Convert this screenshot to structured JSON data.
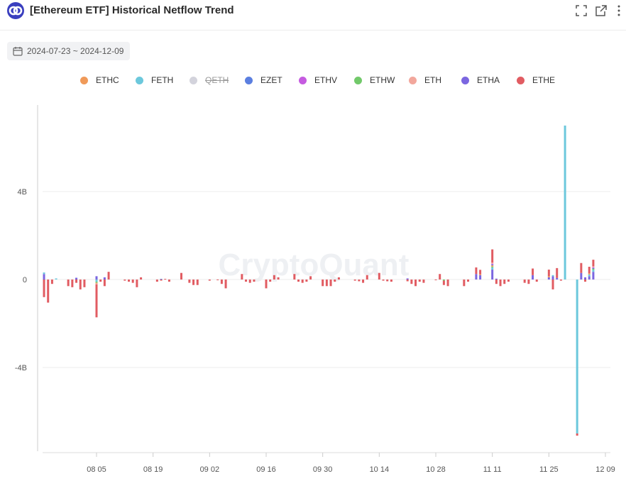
{
  "header": {
    "title": "[Ethereum ETF] Historical Netflow Trend",
    "icons": [
      "expand-icon",
      "open-external-icon",
      "more-icon"
    ]
  },
  "date_range": {
    "label": "2024-07-23 ~ 2024-12-09"
  },
  "watermark": "CryptoQuant",
  "legend": [
    {
      "name": "ETHC",
      "color": "#f09a59",
      "enabled": true
    },
    {
      "name": "FETH",
      "color": "#6cc8dc",
      "enabled": true
    },
    {
      "name": "QETH",
      "color": "#d3d3dc",
      "enabled": false
    },
    {
      "name": "EZET",
      "color": "#5b7fe0",
      "enabled": true
    },
    {
      "name": "ETHV",
      "color": "#c55be0",
      "enabled": true
    },
    {
      "name": "ETHW",
      "color": "#72c96a",
      "enabled": true
    },
    {
      "name": "ETH",
      "color": "#f2a79c",
      "enabled": true
    },
    {
      "name": "ETHA",
      "color": "#7b66e0",
      "enabled": true
    },
    {
      "name": "ETHE",
      "color": "#e15c62",
      "enabled": true
    }
  ],
  "chart_data": {
    "type": "bar",
    "stacked": true,
    "title": "",
    "xlabel": "",
    "ylabel": "",
    "x_ticks": [
      "08 05",
      "08 19",
      "09 02",
      "09 16",
      "09 30",
      "10 14",
      "10 28",
      "11 11",
      "11 25",
      "12 09"
    ],
    "y_ticks": [
      "4B",
      "0",
      "-4B"
    ],
    "y_tick_values": [
      4000000000,
      0,
      -4000000000
    ],
    "ylim": [
      -8000000000,
      8000000000
    ],
    "unit": "USD",
    "grid": true,
    "legend_position": "top",
    "series": [
      {
        "name": "ETHA",
        "values": [
          {
            "date": "2024-07-23",
            "value": 250000000
          },
          {
            "date": "2024-07-31",
            "value": 80000000
          },
          {
            "date": "2024-08-05",
            "value": 150000000
          },
          {
            "date": "2024-08-07",
            "value": 100000000
          },
          {
            "date": "2024-10-21",
            "value": 50000000
          },
          {
            "date": "2024-11-07",
            "value": 250000000
          },
          {
            "date": "2024-11-08",
            "value": 200000000
          },
          {
            "date": "2024-11-11",
            "value": 450000000
          },
          {
            "date": "2024-11-12",
            "value": 40000000
          },
          {
            "date": "2024-11-21",
            "value": 200000000
          },
          {
            "date": "2024-11-25",
            "value": 100000000
          },
          {
            "date": "2024-11-26",
            "value": 150000000
          },
          {
            "date": "2024-11-27",
            "value": 70000000
          },
          {
            "date": "2024-12-03",
            "value": 300000000
          },
          {
            "date": "2024-12-04",
            "value": 100000000
          },
          {
            "date": "2024-12-05",
            "value": 150000000
          },
          {
            "date": "2024-12-06",
            "value": 350000000
          }
        ]
      },
      {
        "name": "FETH",
        "values": [
          {
            "date": "2024-07-23",
            "value": 70000000
          },
          {
            "date": "2024-07-26",
            "value": 50000000
          },
          {
            "date": "2024-08-05",
            "value": -100000000
          },
          {
            "date": "2024-11-11",
            "value": 100000000
          },
          {
            "date": "2024-11-26",
            "value": 50000000
          },
          {
            "date": "2024-11-29",
            "value": 7000000000
          },
          {
            "date": "2024-12-02",
            "value": -7000000000
          },
          {
            "date": "2024-12-05",
            "value": 80000000
          },
          {
            "date": "2024-12-06",
            "value": 90000000
          }
        ]
      },
      {
        "name": "ETHW",
        "values": [
          {
            "date": "2024-08-05",
            "value": -50000000
          },
          {
            "date": "2024-10-30",
            "value": -50000000
          },
          {
            "date": "2024-11-11",
            "value": 40000000
          },
          {
            "date": "2024-12-06",
            "value": 60000000
          }
        ]
      },
      {
        "name": "ETHC",
        "values": [
          {
            "date": "2024-08-05",
            "value": -30000000
          },
          {
            "date": "2024-11-08",
            "value": 40000000
          },
          {
            "date": "2024-11-11",
            "value": 60000000
          },
          {
            "date": "2024-11-25",
            "value": 50000000
          },
          {
            "date": "2024-12-05",
            "value": 50000000
          }
        ]
      },
      {
        "name": "EZET",
        "values": [
          {
            "date": "2024-08-21",
            "value": 30000000
          },
          {
            "date": "2024-11-11",
            "value": 30000000
          },
          {
            "date": "2024-12-06",
            "value": 20000000
          }
        ]
      },
      {
        "name": "ETHV",
        "values": [
          {
            "date": "2024-11-11",
            "value": 40000000
          },
          {
            "date": "2024-12-06",
            "value": 40000000
          }
        ]
      },
      {
        "name": "ETH",
        "values": [
          {
            "date": "2024-08-05",
            "value": -40000000
          },
          {
            "date": "2024-11-11",
            "value": 50000000
          },
          {
            "date": "2024-12-06",
            "value": 40000000
          }
        ]
      },
      {
        "name": "ETHE",
        "values": [
          {
            "date": "2024-07-23",
            "value": -800000000
          },
          {
            "date": "2024-07-24",
            "value": -1050000000
          },
          {
            "date": "2024-07-25",
            "value": -200000000
          },
          {
            "date": "2024-07-29",
            "value": -300000000
          },
          {
            "date": "2024-07-30",
            "value": -350000000
          },
          {
            "date": "2024-07-31",
            "value": -150000000
          },
          {
            "date": "2024-08-01",
            "value": -450000000
          },
          {
            "date": "2024-08-02",
            "value": -350000000
          },
          {
            "date": "2024-08-05",
            "value": -1500000000
          },
          {
            "date": "2024-08-06",
            "value": -100000000
          },
          {
            "date": "2024-08-07",
            "value": -300000000
          },
          {
            "date": "2024-08-08",
            "value": 350000000
          },
          {
            "date": "2024-08-12",
            "value": -50000000
          },
          {
            "date": "2024-08-13",
            "value": -100000000
          },
          {
            "date": "2024-08-14",
            "value": -150000000
          },
          {
            "date": "2024-08-15",
            "value": -350000000
          },
          {
            "date": "2024-08-16",
            "value": 100000000
          },
          {
            "date": "2024-08-20",
            "value": -100000000
          },
          {
            "date": "2024-08-21",
            "value": -50000000
          },
          {
            "date": "2024-08-22",
            "value": 30000000
          },
          {
            "date": "2024-08-23",
            "value": -100000000
          },
          {
            "date": "2024-08-26",
            "value": 300000000
          },
          {
            "date": "2024-08-28",
            "value": -150000000
          },
          {
            "date": "2024-08-29",
            "value": -250000000
          },
          {
            "date": "2024-08-30",
            "value": -250000000
          },
          {
            "date": "2024-09-02",
            "value": -50000000
          },
          {
            "date": "2024-09-04",
            "value": -30000000
          },
          {
            "date": "2024-09-05",
            "value": -200000000
          },
          {
            "date": "2024-09-06",
            "value": -400000000
          },
          {
            "date": "2024-09-10",
            "value": 250000000
          },
          {
            "date": "2024-09-11",
            "value": -100000000
          },
          {
            "date": "2024-09-12",
            "value": -150000000
          },
          {
            "date": "2024-09-13",
            "value": -100000000
          },
          {
            "date": "2024-09-16",
            "value": -400000000
          },
          {
            "date": "2024-09-17",
            "value": -100000000
          },
          {
            "date": "2024-09-18",
            "value": 200000000
          },
          {
            "date": "2024-09-19",
            "value": 100000000
          },
          {
            "date": "2024-09-23",
            "value": 250000000
          },
          {
            "date": "2024-09-24",
            "value": -100000000
          },
          {
            "date": "2024-09-25",
            "value": -150000000
          },
          {
            "date": "2024-09-26",
            "value": -100000000
          },
          {
            "date": "2024-09-27",
            "value": 150000000
          },
          {
            "date": "2024-09-30",
            "value": -300000000
          },
          {
            "date": "2024-10-01",
            "value": -300000000
          },
          {
            "date": "2024-10-02",
            "value": -300000000
          },
          {
            "date": "2024-10-03",
            "value": -100000000
          },
          {
            "date": "2024-10-04",
            "value": 100000000
          },
          {
            "date": "2024-10-08",
            "value": -50000000
          },
          {
            "date": "2024-10-09",
            "value": -80000000
          },
          {
            "date": "2024-10-10",
            "value": -150000000
          },
          {
            "date": "2024-10-11",
            "value": 200000000
          },
          {
            "date": "2024-10-14",
            "value": 300000000
          },
          {
            "date": "2024-10-15",
            "value": -50000000
          },
          {
            "date": "2024-10-16",
            "value": -80000000
          },
          {
            "date": "2024-10-17",
            "value": -100000000
          },
          {
            "date": "2024-10-21",
            "value": -80000000
          },
          {
            "date": "2024-10-22",
            "value": -200000000
          },
          {
            "date": "2024-10-23",
            "value": -300000000
          },
          {
            "date": "2024-10-24",
            "value": -100000000
          },
          {
            "date": "2024-10-25",
            "value": -150000000
          },
          {
            "date": "2024-10-28",
            "value": -30000000
          },
          {
            "date": "2024-10-29",
            "value": 250000000
          },
          {
            "date": "2024-10-30",
            "value": -200000000
          },
          {
            "date": "2024-10-31",
            "value": -300000000
          },
          {
            "date": "2024-11-04",
            "value": -300000000
          },
          {
            "date": "2024-11-05",
            "value": -100000000
          },
          {
            "date": "2024-11-07",
            "value": 300000000
          },
          {
            "date": "2024-11-08",
            "value": 200000000
          },
          {
            "date": "2024-11-11",
            "value": 600000000
          },
          {
            "date": "2024-11-12",
            "value": -200000000
          },
          {
            "date": "2024-11-13",
            "value": -300000000
          },
          {
            "date": "2024-11-14",
            "value": -200000000
          },
          {
            "date": "2024-11-15",
            "value": -100000000
          },
          {
            "date": "2024-11-19",
            "value": -150000000
          },
          {
            "date": "2024-11-20",
            "value": -200000000
          },
          {
            "date": "2024-11-21",
            "value": 300000000
          },
          {
            "date": "2024-11-22",
            "value": -100000000
          },
          {
            "date": "2024-11-25",
            "value": 300000000
          },
          {
            "date": "2024-11-26",
            "value": -450000000
          },
          {
            "date": "2024-11-27",
            "value": 450000000
          },
          {
            "date": "2024-11-28",
            "value": -50000000
          },
          {
            "date": "2024-12-02",
            "value": -100000000
          },
          {
            "date": "2024-12-03",
            "value": 450000000
          },
          {
            "date": "2024-12-04",
            "value": -100000000
          },
          {
            "date": "2024-12-05",
            "value": 300000000
          },
          {
            "date": "2024-12-06",
            "value": 300000000
          }
        ]
      }
    ]
  }
}
